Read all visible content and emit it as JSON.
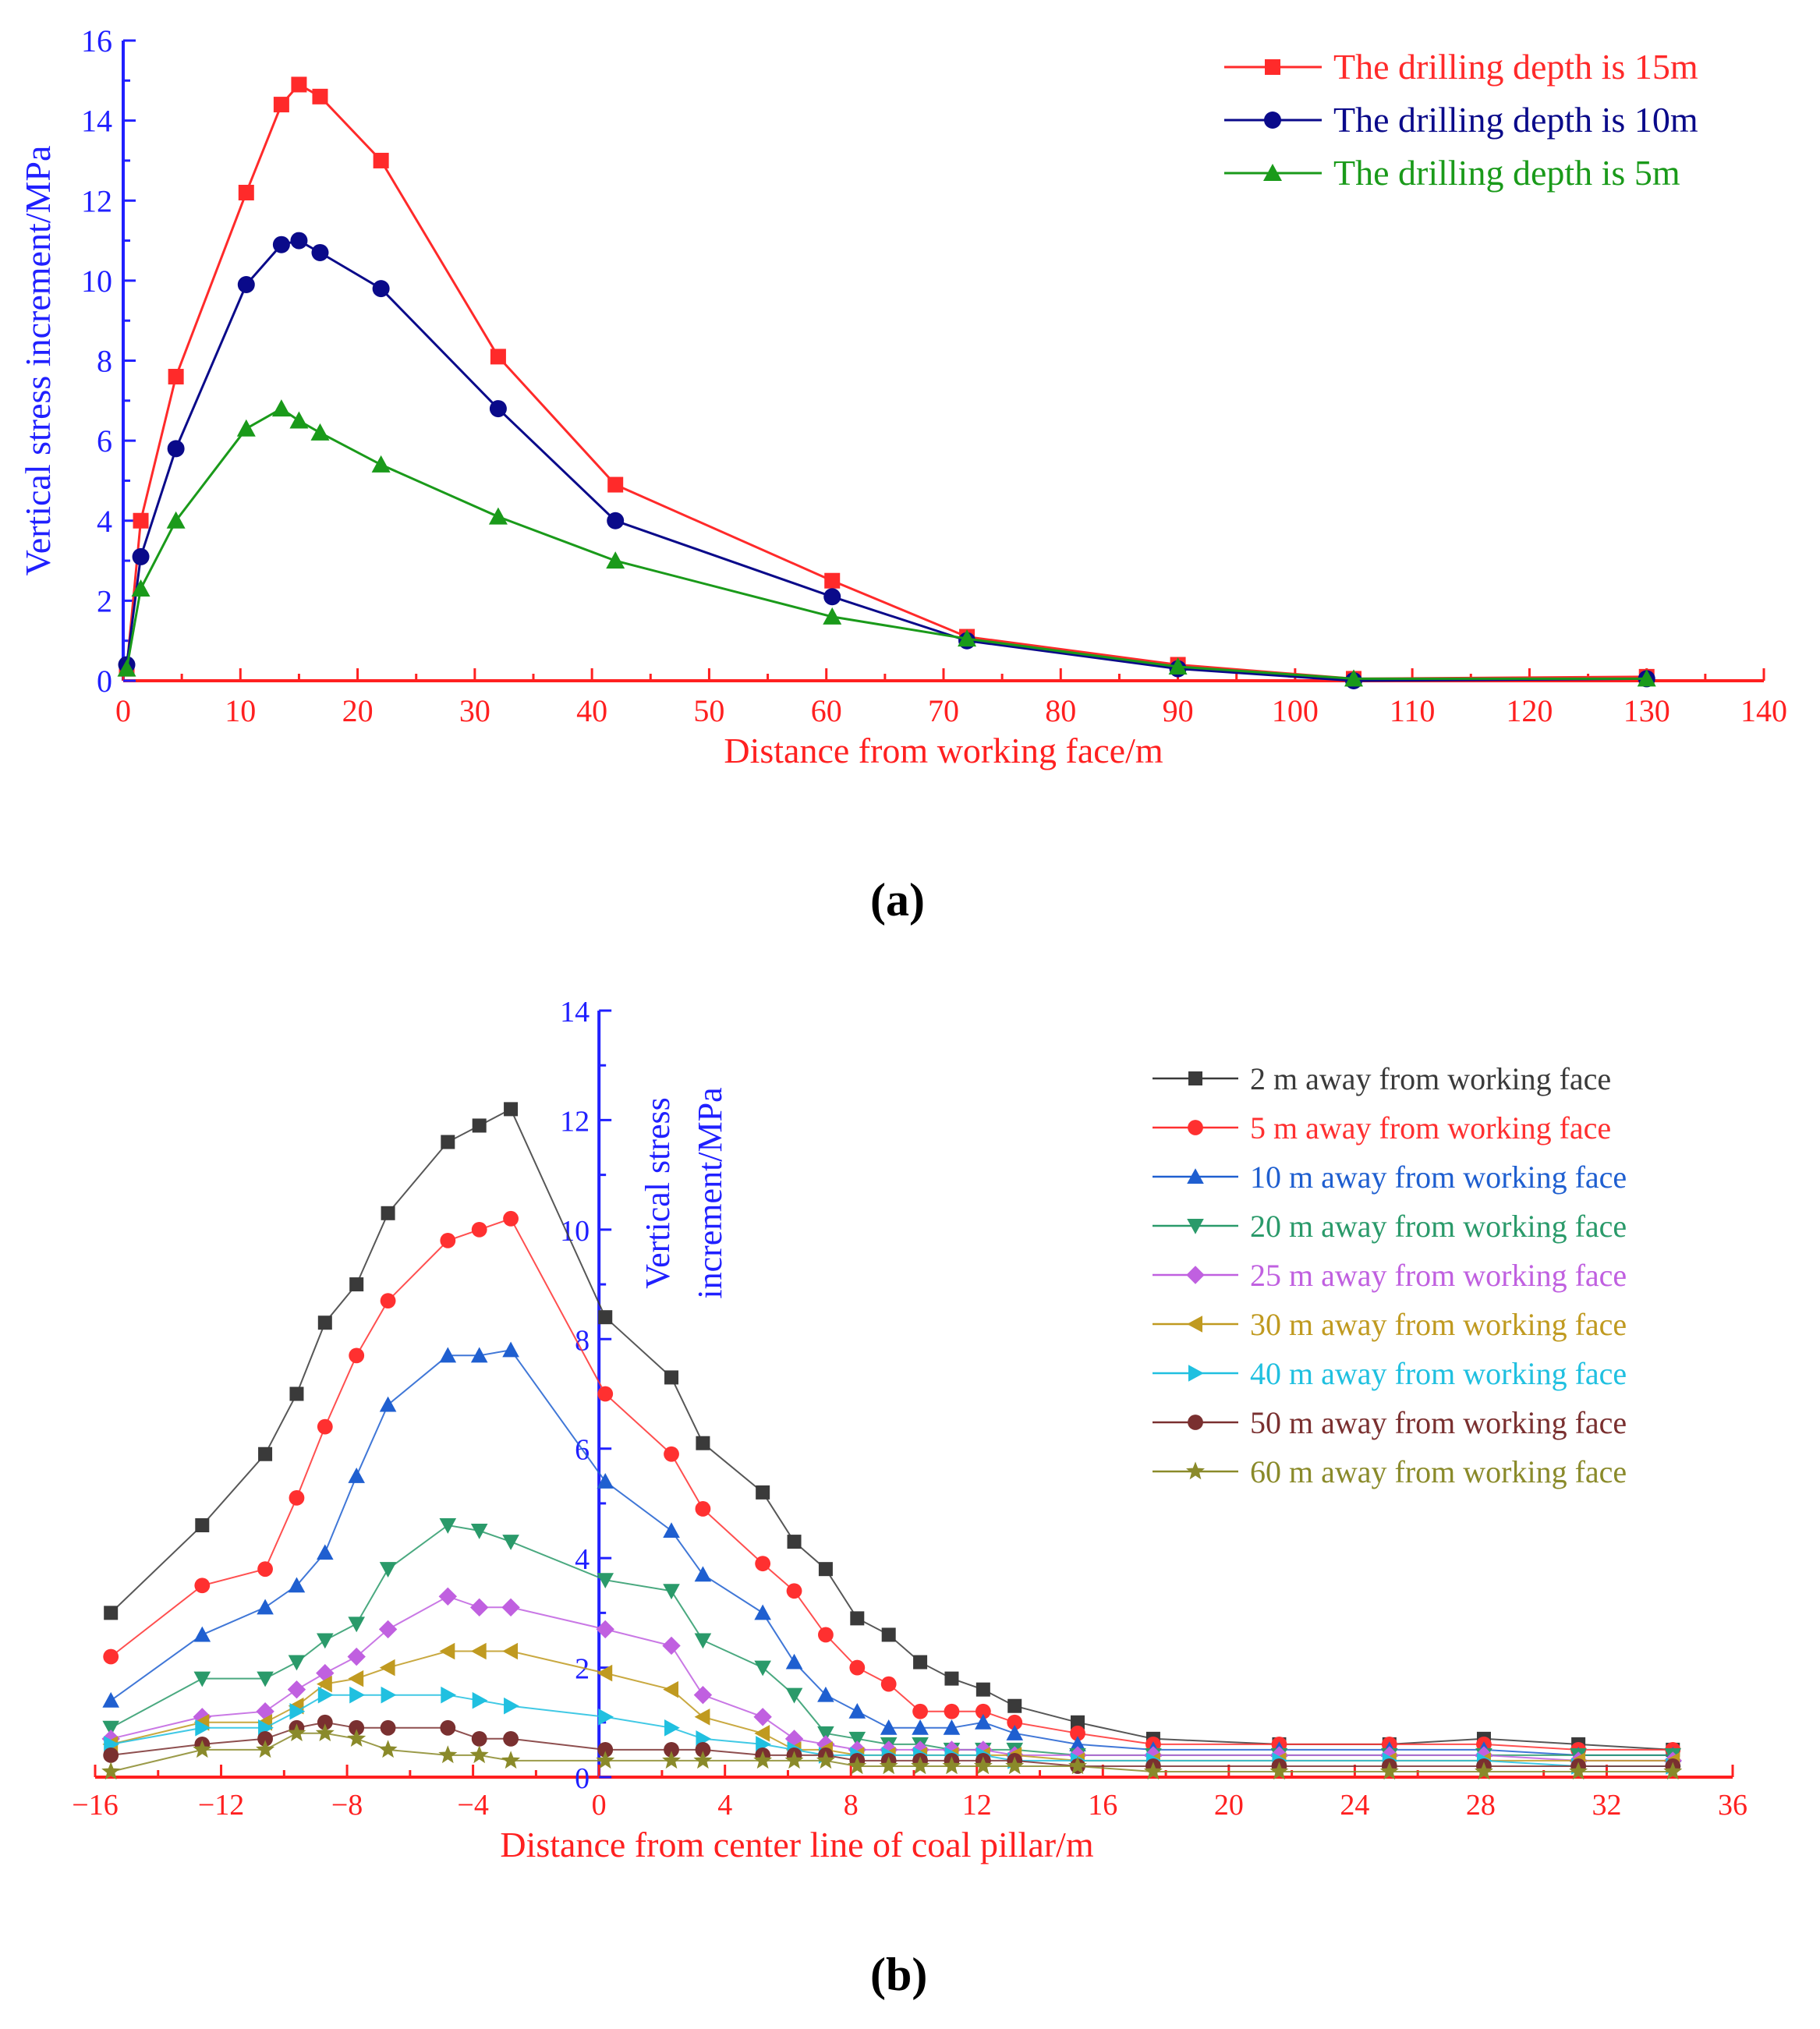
{
  "panels": {
    "a": "(a)",
    "b": "(b)"
  },
  "chart_data": [
    {
      "id": "a",
      "type": "line",
      "title": "",
      "xlabel": "Distance from working face/m",
      "ylabel": "Vertical stress increment/MPa",
      "xlim": [
        0,
        140
      ],
      "ylim": [
        0,
        16
      ],
      "xticks": [
        0,
        10,
        20,
        30,
        40,
        50,
        60,
        70,
        80,
        90,
        100,
        110,
        120,
        130,
        140
      ],
      "yticks": [
        0,
        2,
        4,
        6,
        8,
        10,
        12,
        14,
        16
      ],
      "colors": {
        "x_axis": "#ff2020",
        "y_axis": "#2020ff"
      },
      "legend": "top-right",
      "series": [
        {
          "name": "The drilling depth is 15m",
          "color": "#ff2a2a",
          "marker": "square",
          "x": [
            0.3,
            1.5,
            4.5,
            10.5,
            13.5,
            15,
            16.8,
            22,
            32,
            42,
            60.5,
            72,
            90,
            105,
            130
          ],
          "y": [
            0.3,
            4.0,
            7.6,
            12.2,
            14.4,
            14.9,
            14.6,
            13.0,
            8.1,
            4.9,
            2.5,
            1.1,
            0.4,
            0.05,
            0.1
          ]
        },
        {
          "name": "The drilling depth is 10m",
          "color": "#0a0a8a",
          "marker": "circle",
          "x": [
            0.3,
            1.5,
            4.5,
            10.5,
            13.5,
            15,
            16.8,
            22,
            32,
            42,
            60.5,
            72,
            90,
            105,
            130
          ],
          "y": [
            0.4,
            3.1,
            5.8,
            9.9,
            10.9,
            11.0,
            10.7,
            9.8,
            6.8,
            4.0,
            2.1,
            1.0,
            0.3,
            0.0,
            0.05
          ]
        },
        {
          "name": "The drilling depth is 5m",
          "color": "#1a9a1a",
          "marker": "triangle",
          "x": [
            0.3,
            1.5,
            4.5,
            10.5,
            13.5,
            15,
            16.8,
            22,
            32,
            42,
            60.5,
            72,
            90,
            105,
            130
          ],
          "y": [
            0.3,
            2.3,
            4.0,
            6.3,
            6.8,
            6.5,
            6.2,
            5.4,
            4.1,
            3.0,
            1.6,
            1.05,
            0.35,
            0.05,
            0.05
          ]
        }
      ]
    },
    {
      "id": "b",
      "type": "line",
      "title": "",
      "xlabel": "Distance from center line of coal pillar/m",
      "ylabel_lines": [
        "Vertical stress",
        "increment/MPa"
      ],
      "xlim": [
        -16,
        36
      ],
      "ylim": [
        0,
        14
      ],
      "xticks": [
        -16,
        -12,
        -8,
        -4,
        0,
        4,
        8,
        12,
        16,
        20,
        24,
        28,
        32,
        36
      ],
      "xtick_labels": [
        "−16",
        "−12",
        "−8",
        "−4",
        "0",
        "4",
        "8",
        "12",
        "16",
        "20",
        "24",
        "28",
        "32",
        "36"
      ],
      "yticks": [
        0,
        2,
        4,
        6,
        8,
        10,
        12,
        14
      ],
      "colors": {
        "x_axis": "#ff2020",
        "y_axis": "#2020ff"
      },
      "legend": "top-right",
      "x": [
        -15.5,
        -12.6,
        -10.6,
        -9.6,
        -8.7,
        -7.7,
        -6.7,
        -4.8,
        -3.8,
        -2.8,
        0.2,
        2.3,
        3.3,
        5.2,
        6.2,
        7.2,
        8.2,
        9.2,
        10.2,
        11.2,
        12.2,
        13.2,
        15.2,
        17.6,
        21.6,
        25.1,
        28.1,
        31.1,
        34.1
      ],
      "series": [
        {
          "name": "2 m away from working face",
          "color": "#3a3a3a",
          "marker": "square",
          "values": [
            3.0,
            4.6,
            5.9,
            7.0,
            8.3,
            9.0,
            10.3,
            11.6,
            11.9,
            12.2,
            8.4,
            7.3,
            6.1,
            5.2,
            4.3,
            3.8,
            2.9,
            2.6,
            2.1,
            1.8,
            1.6,
            1.3,
            1.0,
            0.7,
            0.6,
            0.6,
            0.7,
            0.6,
            0.5
          ]
        },
        {
          "name": "5 m away from working face",
          "color": "#ff3030",
          "marker": "circle",
          "values": [
            2.2,
            3.5,
            3.8,
            5.1,
            6.4,
            7.7,
            8.7,
            9.8,
            10.0,
            10.2,
            7.0,
            5.9,
            4.9,
            3.9,
            3.4,
            2.6,
            2.0,
            1.7,
            1.2,
            1.2,
            1.2,
            1.0,
            0.8,
            0.6,
            0.6,
            0.6,
            0.6,
            0.5,
            0.5
          ]
        },
        {
          "name": "10 m away from working face",
          "color": "#1f5fd0",
          "marker": "triangle-up",
          "values": [
            1.4,
            2.6,
            3.1,
            3.5,
            4.1,
            5.5,
            6.8,
            7.7,
            7.7,
            7.8,
            5.4,
            4.5,
            3.7,
            3.0,
            2.1,
            1.5,
            1.2,
            0.9,
            0.9,
            0.9,
            1.0,
            0.8,
            0.6,
            0.5,
            0.5,
            0.5,
            0.5,
            0.4,
            0.4
          ]
        },
        {
          "name": "20 m away from working face",
          "color": "#2a9a6a",
          "marker": "triangle-down",
          "values": [
            0.9,
            1.8,
            1.8,
            2.1,
            2.5,
            2.8,
            3.8,
            4.6,
            4.5,
            4.3,
            3.6,
            3.4,
            2.5,
            2.0,
            1.5,
            0.8,
            0.7,
            0.6,
            0.6,
            0.5,
            0.5,
            0.5,
            0.4,
            0.4,
            0.4,
            0.4,
            0.4,
            0.4,
            0.4
          ]
        },
        {
          "name": "25 m away from working face",
          "color": "#c060e0",
          "marker": "diamond",
          "values": [
            0.7,
            1.1,
            1.2,
            1.6,
            1.9,
            2.2,
            2.7,
            3.3,
            3.1,
            3.1,
            2.7,
            2.4,
            1.5,
            1.1,
            0.7,
            0.6,
            0.5,
            0.5,
            0.5,
            0.5,
            0.5,
            0.4,
            0.4,
            0.4,
            0.4,
            0.4,
            0.4,
            0.3,
            0.3
          ]
        },
        {
          "name": "30 m away from working face",
          "color": "#c09a20",
          "marker": "triangle-left",
          "values": [
            0.6,
            1.0,
            1.0,
            1.3,
            1.7,
            1.8,
            2.0,
            2.3,
            2.3,
            2.3,
            1.9,
            1.6,
            1.1,
            0.8,
            0.5,
            0.5,
            0.4,
            0.4,
            0.4,
            0.4,
            0.4,
            0.4,
            0.3,
            0.3,
            0.3,
            0.3,
            0.3,
            0.3,
            0.3
          ]
        },
        {
          "name": "40 m away from working face",
          "color": "#20c0e0",
          "marker": "triangle-right",
          "values": [
            0.6,
            0.9,
            0.9,
            1.2,
            1.5,
            1.5,
            1.5,
            1.5,
            1.4,
            1.3,
            1.1,
            0.9,
            0.7,
            0.6,
            0.5,
            0.4,
            0.4,
            0.4,
            0.4,
            0.4,
            0.4,
            0.3,
            0.3,
            0.3,
            0.3,
            0.3,
            0.3,
            0.2,
            0.2
          ]
        },
        {
          "name": "50 m away from working face",
          "color": "#7a3030",
          "marker": "circle",
          "values": [
            0.4,
            0.6,
            0.7,
            0.9,
            1.0,
            0.9,
            0.9,
            0.9,
            0.7,
            0.7,
            0.5,
            0.5,
            0.5,
            0.4,
            0.4,
            0.4,
            0.3,
            0.3,
            0.3,
            0.3,
            0.3,
            0.3,
            0.2,
            0.2,
            0.2,
            0.2,
            0.2,
            0.2,
            0.2
          ]
        },
        {
          "name": "60 m away from working face",
          "color": "#8a8a2a",
          "marker": "star",
          "values": [
            0.1,
            0.5,
            0.5,
            0.8,
            0.8,
            0.7,
            0.5,
            0.4,
            0.4,
            0.3,
            0.3,
            0.3,
            0.3,
            0.3,
            0.3,
            0.3,
            0.2,
            0.2,
            0.2,
            0.2,
            0.2,
            0.2,
            0.2,
            0.1,
            0.1,
            0.1,
            0.1,
            0.1,
            0.1
          ]
        }
      ]
    }
  ]
}
